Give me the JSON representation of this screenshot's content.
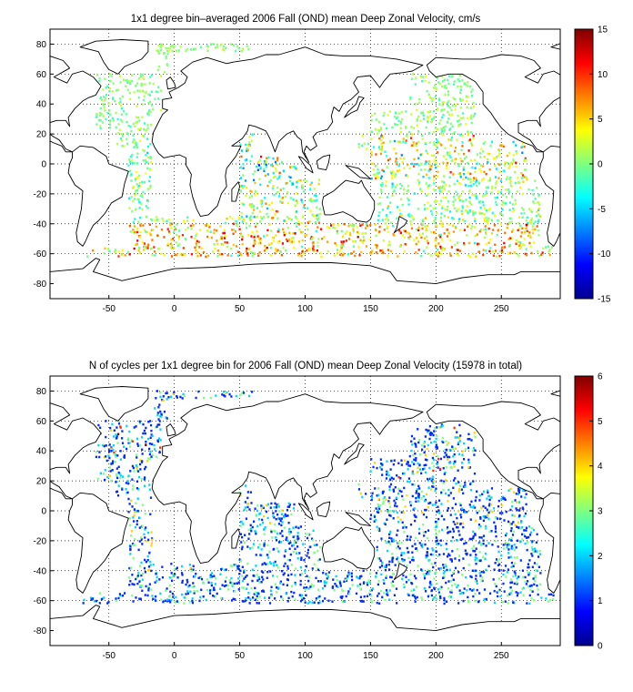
{
  "chart_data": [
    {
      "type": "heatmap",
      "title": "1x1 degree bin–averaged 2006 Fall (OND) mean Deep Zonal Velocity, cm/s",
      "xlabel": "",
      "ylabel": "",
      "xlim": [
        -95,
        295
      ],
      "ylim": [
        -90,
        90
      ],
      "x_ticks": [
        -50,
        0,
        50,
        100,
        150,
        200,
        250
      ],
      "y_ticks": [
        80,
        60,
        40,
        20,
        0,
        -20,
        -40,
        -60,
        -80
      ],
      "grid": true,
      "colorbar": {
        "min": -15,
        "max": 15,
        "ticks": [
          15,
          10,
          5,
          0,
          -5,
          -10,
          -15
        ],
        "colormap": "jet"
      },
      "bands": [
        {
          "lat": [
            60,
            80
          ],
          "lon": [
            -60,
            60
          ],
          "values": [
            -2,
            3
          ]
        },
        {
          "lat": [
            20,
            60
          ],
          "lon": [
            -80,
            -10
          ],
          "values": [
            -3,
            3
          ]
        },
        {
          "lat": [
            20,
            60
          ],
          "lon": [
            150,
            235
          ],
          "values": [
            -3,
            4
          ]
        },
        {
          "lat": [
            -10,
            20
          ],
          "lon": [
            -45,
            10
          ],
          "values": [
            -6,
            5
          ]
        },
        {
          "lat": [
            -10,
            20
          ],
          "lon": [
            45,
            100
          ],
          "values": [
            -12,
            12
          ]
        },
        {
          "lat": [
            -10,
            20
          ],
          "lon": [
            140,
            270
          ],
          "values": [
            -8,
            12
          ]
        },
        {
          "lat": [
            -40,
            -10
          ],
          "lon": [
            -40,
            15
          ],
          "values": [
            -6,
            6
          ]
        },
        {
          "lat": [
            -40,
            -10
          ],
          "lon": [
            35,
            115
          ],
          "values": [
            -8,
            10
          ]
        },
        {
          "lat": [
            -40,
            -10
          ],
          "lon": [
            155,
            285
          ],
          "values": [
            -6,
            6
          ]
        },
        {
          "lat": [
            -62,
            -40
          ],
          "lon": [
            -70,
            290
          ],
          "values": [
            -4,
            14
          ]
        }
      ]
    },
    {
      "type": "heatmap",
      "title": "N of cycles per 1x1 degree bin for 2006 Fall (OND) mean Deep Zonal Velocity (15978 in total)",
      "xlabel": "",
      "ylabel": "",
      "xlim": [
        -95,
        295
      ],
      "ylim": [
        -90,
        90
      ],
      "x_ticks": [
        -50,
        0,
        50,
        100,
        150,
        200,
        250
      ],
      "y_ticks": [
        80,
        60,
        40,
        20,
        0,
        -20,
        -40,
        -60,
        -80
      ],
      "grid": true,
      "colorbar": {
        "min": 0,
        "max": 6,
        "ticks": [
          6,
          5,
          4,
          3,
          2,
          1,
          0
        ],
        "colormap": "jet"
      },
      "bands": [
        {
          "lat": [
            60,
            80
          ],
          "lon": [
            -60,
            60
          ],
          "values": [
            1,
            6
          ]
        },
        {
          "lat": [
            20,
            60
          ],
          "lon": [
            -80,
            -10
          ],
          "values": [
            1,
            6
          ]
        },
        {
          "lat": [
            20,
            60
          ],
          "lon": [
            150,
            235
          ],
          "values": [
            1,
            5
          ]
        },
        {
          "lat": [
            -10,
            20
          ],
          "lon": [
            -45,
            10
          ],
          "values": [
            1,
            4
          ]
        },
        {
          "lat": [
            -10,
            20
          ],
          "lon": [
            45,
            100
          ],
          "values": [
            1,
            4
          ]
        },
        {
          "lat": [
            -10,
            20
          ],
          "lon": [
            140,
            270
          ],
          "values": [
            1,
            4
          ]
        },
        {
          "lat": [
            -40,
            -10
          ],
          "lon": [
            -40,
            15
          ],
          "values": [
            1,
            4
          ]
        },
        {
          "lat": [
            -40,
            -10
          ],
          "lon": [
            35,
            115
          ],
          "values": [
            1,
            3
          ]
        },
        {
          "lat": [
            -40,
            -10
          ],
          "lon": [
            155,
            285
          ],
          "values": [
            1,
            3
          ]
        },
        {
          "lat": [
            -62,
            -40
          ],
          "lon": [
            -70,
            290
          ],
          "values": [
            1,
            3
          ]
        }
      ]
    }
  ]
}
